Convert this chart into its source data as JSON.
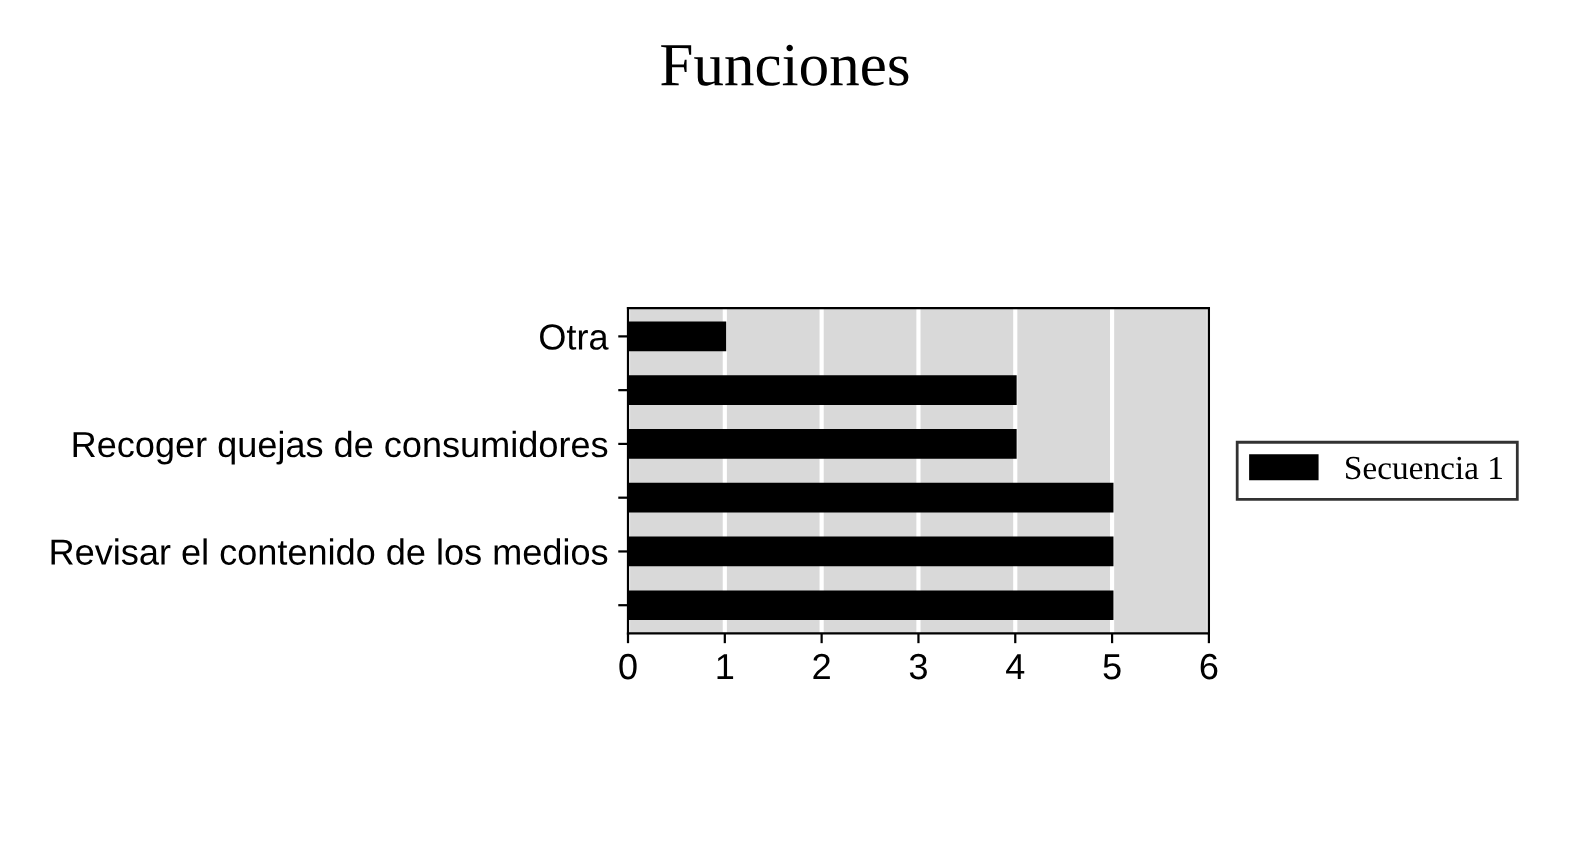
{
  "chart_data": {
    "type": "bar",
    "orientation": "horizontal",
    "title": "Funciones",
    "categories": [
      "Otra",
      null,
      "Recoger quejas de consumidores",
      null,
      "Revisar el contenido de los medios",
      null
    ],
    "series": [
      {
        "name": "Secuencia 1",
        "color": "#000000",
        "values": [
          1,
          4,
          4,
          5,
          5,
          5
        ]
      }
    ],
    "xlim": [
      0,
      6
    ],
    "xticks": [
      0,
      1,
      2,
      3,
      4,
      5,
      6
    ],
    "grid": "x",
    "legend": "right"
  }
}
